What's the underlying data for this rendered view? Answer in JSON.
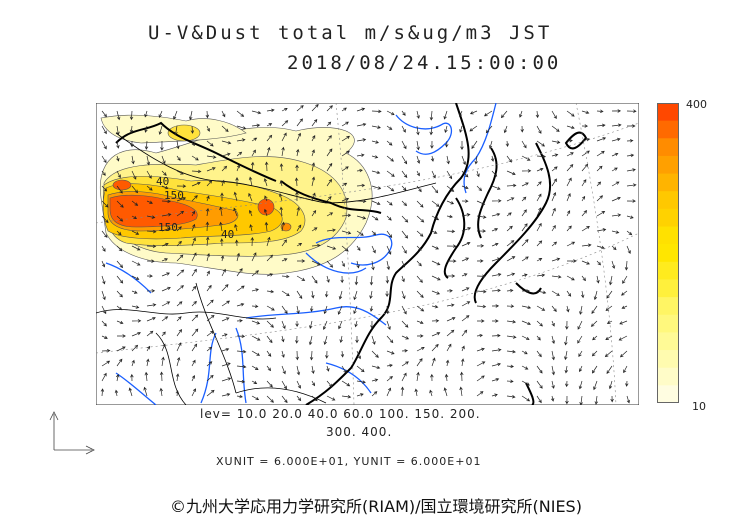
{
  "title": {
    "line1": "U-V&Dust total m/s&ug/m3 JST",
    "line2": "2018/08/24.15:00:00"
  },
  "colorbar": {
    "max_label": "400",
    "min_label": "10",
    "colors": [
      "#ff4800",
      "#ff6a00",
      "#ff8c00",
      "#ffa000",
      "#ffb400",
      "#ffc800",
      "#ffd200",
      "#ffe100",
      "#ffe600",
      "#ffeb1e",
      "#fff03c",
      "#fff564",
      "#fff87d",
      "#fffa96",
      "#fffbaf",
      "#fffcc8",
      "#fffde1"
    ]
  },
  "levels": {
    "line1": "lev= 10.0 20.0 40.0 60.0 100. 150. 200.",
    "line2": "300. 400."
  },
  "units": "XUNIT = 6.000E+01, YUNIT = 6.000E+01",
  "footer": "©九州大学応用力学研究所(RIAM)/国立環境研究所(NIES)",
  "contour_labels": [
    "40",
    "150",
    "150",
    "40"
  ],
  "colors": {
    "river": "#1a5fff",
    "coast": "#000000",
    "dust_high": "#ff4800",
    "dust_low": "#fffbc8"
  }
}
